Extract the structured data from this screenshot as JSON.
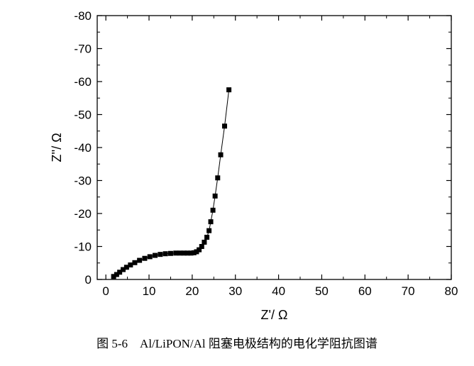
{
  "caption": "图 5-6    Al/LiPON/Al 阻塞电极结构的电化学阻抗图谱",
  "chart_data": {
    "type": "scatter",
    "title": "",
    "xlabel": "Z'/ Ω",
    "ylabel": "Z''/ Ω",
    "xlim": [
      -2,
      80
    ],
    "ylim": [
      0,
      -80
    ],
    "x_ticks": [
      0,
      10,
      20,
      30,
      40,
      50,
      60,
      70,
      80
    ],
    "y_ticks": [
      0,
      -10,
      -20,
      -30,
      -40,
      -50,
      -60,
      -70,
      -80
    ],
    "x_tick_labels": [
      "0",
      "10",
      "20",
      "30",
      "40",
      "50",
      "60",
      "70",
      "80"
    ],
    "y_tick_labels": [
      "0",
      "-10",
      "-20",
      "-30",
      "-40",
      "-50",
      "-60",
      "-70",
      "-80"
    ],
    "grid": false,
    "marker": "square",
    "line": true,
    "series": [
      {
        "color": "#000000",
        "points": [
          [
            1.8,
            -0.9
          ],
          [
            2.5,
            -1.5
          ],
          [
            3.2,
            -2.2
          ],
          [
            4.0,
            -3.0
          ],
          [
            4.8,
            -3.7
          ],
          [
            5.7,
            -4.4
          ],
          [
            6.7,
            -5.1
          ],
          [
            7.8,
            -5.8
          ],
          [
            9.0,
            -6.4
          ],
          [
            10.2,
            -6.9
          ],
          [
            11.4,
            -7.3
          ],
          [
            12.6,
            -7.6
          ],
          [
            13.8,
            -7.8
          ],
          [
            15.0,
            -7.9
          ],
          [
            16.2,
            -8.0
          ],
          [
            17.2,
            -8.0
          ],
          [
            18.1,
            -8.0
          ],
          [
            18.9,
            -8.0
          ],
          [
            19.7,
            -8.0
          ],
          [
            20.4,
            -8.1
          ],
          [
            21.0,
            -8.4
          ],
          [
            21.6,
            -9.0
          ],
          [
            22.2,
            -10.0
          ],
          [
            22.8,
            -11.3
          ],
          [
            23.4,
            -12.8
          ],
          [
            23.9,
            -14.8
          ],
          [
            24.3,
            -17.5
          ],
          [
            24.8,
            -21.0
          ],
          [
            25.3,
            -25.3
          ],
          [
            25.9,
            -30.8
          ],
          [
            26.6,
            -37.8
          ],
          [
            27.5,
            -46.5
          ],
          [
            28.5,
            -57.5
          ]
        ]
      }
    ]
  }
}
